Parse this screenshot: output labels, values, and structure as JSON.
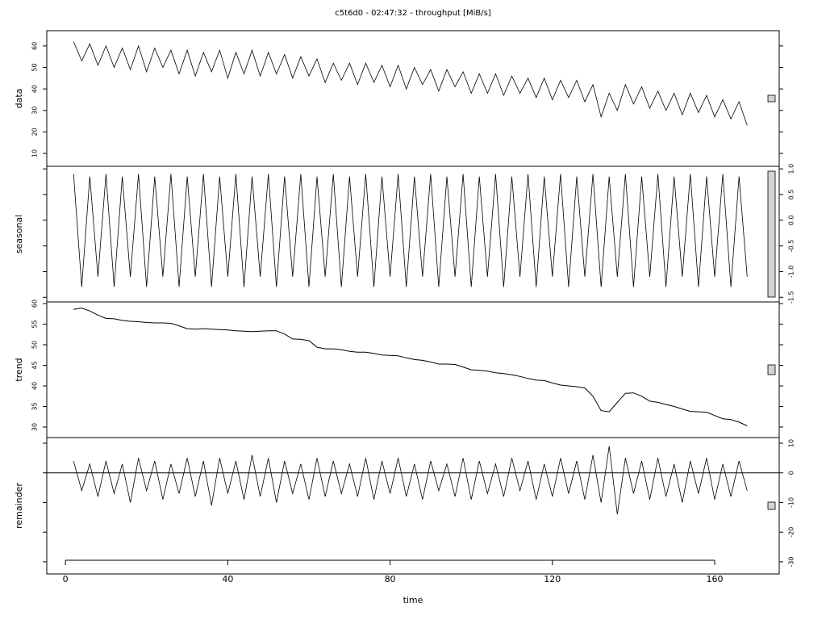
{
  "chart_data": [
    {
      "type": "line",
      "title": "c5t6d0 - 02:47:32 - throughput [MiB/s]",
      "ylabel": "data",
      "axis_side": "left",
      "color": "#000000",
      "xlim": [
        -4.6,
        175.9
      ],
      "ylim": [
        4.0,
        67.1
      ],
      "yticks": [
        10,
        20,
        30,
        40,
        50,
        60
      ],
      "x": [
        2,
        4,
        6,
        8,
        10,
        12,
        14,
        16,
        18,
        20,
        22,
        24,
        26,
        28,
        30,
        32,
        34,
        36,
        38,
        40,
        42,
        44,
        46,
        48,
        50,
        52,
        54,
        56,
        58,
        60,
        62,
        64,
        66,
        68,
        70,
        72,
        74,
        76,
        78,
        80,
        82,
        84,
        86,
        88,
        90,
        92,
        94,
        96,
        98,
        100,
        102,
        104,
        106,
        108,
        110,
        112,
        114,
        116,
        118,
        120,
        122,
        124,
        126,
        128,
        130,
        132,
        134,
        136,
        138,
        140,
        142,
        144,
        146,
        148,
        150,
        152,
        154,
        156,
        158,
        160,
        162,
        164,
        166,
        168
      ],
      "values": [
        62,
        53,
        61,
        51,
        60,
        50,
        59,
        49,
        60,
        48,
        59,
        50,
        58,
        47,
        58,
        46,
        57,
        48,
        58,
        45,
        57,
        47,
        58,
        46,
        57,
        47,
        56,
        45,
        55,
        46,
        54,
        43,
        52,
        44,
        52,
        42,
        52,
        43,
        51,
        41,
        51,
        40,
        50,
        42,
        49,
        39,
        49,
        41,
        48,
        38,
        47,
        38,
        47,
        37,
        46,
        38,
        45,
        36,
        45,
        35,
        44,
        36,
        44,
        34,
        42,
        27,
        38,
        30,
        42,
        33,
        41,
        31,
        39,
        30,
        38,
        28,
        38,
        29,
        37,
        27,
        35,
        26,
        34,
        23
      ]
    },
    {
      "type": "line",
      "ylabel": "seasonal",
      "axis_side": "right",
      "color": "#000000",
      "xlim": [
        -4.6,
        175.9
      ],
      "ylim": [
        -1.59,
        1.05
      ],
      "yticks": [
        {
          "value": 1,
          "label": "1.0"
        },
        0.5,
        {
          "value": 0,
          "label": "0.0"
        },
        -0.5,
        {
          "value": -1,
          "label": "-1.0"
        },
        -1.5
      ],
      "x": [
        2,
        4,
        6,
        8,
        10,
        12,
        14,
        16,
        18,
        20,
        22,
        24,
        26,
        28,
        30,
        32,
        34,
        36,
        38,
        40,
        42,
        44,
        46,
        48,
        50,
        52,
        54,
        56,
        58,
        60,
        62,
        64,
        66,
        68,
        70,
        72,
        74,
        76,
        78,
        80,
        82,
        84,
        86,
        88,
        90,
        92,
        94,
        96,
        98,
        100,
        102,
        104,
        106,
        108,
        110,
        112,
        114,
        116,
        118,
        120,
        122,
        124,
        126,
        128,
        130,
        132,
        134,
        136,
        138,
        140,
        142,
        144,
        146,
        148,
        150,
        152,
        154,
        156,
        158,
        160,
        162,
        164,
        166,
        168
      ],
      "values": [
        0.9,
        -1.3,
        0.85,
        -1.1,
        0.9,
        -1.3,
        0.85,
        -1.1,
        0.9,
        -1.3,
        0.85,
        -1.1,
        0.9,
        -1.3,
        0.85,
        -1.1,
        0.9,
        -1.3,
        0.85,
        -1.1,
        0.9,
        -1.3,
        0.85,
        -1.1,
        0.9,
        -1.3,
        0.85,
        -1.1,
        0.9,
        -1.3,
        0.85,
        -1.1,
        0.9,
        -1.3,
        0.85,
        -1.1,
        0.9,
        -1.3,
        0.85,
        -1.1,
        0.9,
        -1.3,
        0.85,
        -1.1,
        0.9,
        -1.3,
        0.85,
        -1.1,
        0.9,
        -1.3,
        0.85,
        -1.1,
        0.9,
        -1.3,
        0.85,
        -1.1,
        0.9,
        -1.3,
        0.85,
        -1.1,
        0.9,
        -1.3,
        0.85,
        -1.1,
        0.9,
        -1.3,
        0.85,
        -1.1,
        0.9,
        -1.3,
        0.85,
        -1.1,
        0.9,
        -1.3,
        0.85,
        -1.1,
        0.9,
        -1.3,
        0.85,
        -1.1,
        0.9,
        -1.3,
        0.85,
        -1.1
      ]
    },
    {
      "type": "line",
      "ylabel": "trend",
      "axis_side": "left",
      "color": "#000000",
      "xlim": [
        -4.6,
        175.9
      ],
      "ylim": [
        27.45,
        60.4
      ],
      "yticks": [
        30,
        35,
        40,
        45,
        50,
        55,
        60
      ],
      "x": [
        2,
        4,
        6,
        8,
        10,
        12,
        14,
        16,
        18,
        20,
        22,
        24,
        26,
        28,
        30,
        32,
        34,
        36,
        38,
        40,
        42,
        44,
        46,
        48,
        50,
        52,
        54,
        56,
        58,
        60,
        62,
        64,
        66,
        68,
        70,
        72,
        74,
        76,
        78,
        80,
        82,
        84,
        86,
        88,
        90,
        92,
        94,
        96,
        98,
        100,
        102,
        104,
        106,
        108,
        110,
        112,
        114,
        116,
        118,
        120,
        122,
        124,
        126,
        128,
        130,
        132,
        134,
        136,
        138,
        140,
        142,
        144,
        146,
        148,
        150,
        152,
        154,
        156,
        158,
        160,
        162,
        164,
        166,
        168
      ],
      "values": [
        58.6,
        58.9,
        58.2,
        57.2,
        56.4,
        56.3,
        55.9,
        55.7,
        55.6,
        55.4,
        55.3,
        55.3,
        55.2,
        54.6,
        53.9,
        53.8,
        53.9,
        53.8,
        53.7,
        53.6,
        53.4,
        53.3,
        53.2,
        53.3,
        53.4,
        53.4,
        52.6,
        51.4,
        51.3,
        51.0,
        49.4,
        49.0,
        49.0,
        48.8,
        48.4,
        48.2,
        48.2,
        47.9,
        47.5,
        47.4,
        47.3,
        46.8,
        46.4,
        46.2,
        45.8,
        45.3,
        45.3,
        45.2,
        44.6,
        43.9,
        43.8,
        43.6,
        43.2,
        43.0,
        42.7,
        42.3,
        41.8,
        41.4,
        41.3,
        40.7,
        40.2,
        40.0,
        39.8,
        39.5,
        37.5,
        34.0,
        33.7,
        36.0,
        38.2,
        38.3,
        37.5,
        36.3,
        36.0,
        35.5,
        35.0,
        34.4,
        33.8,
        33.7,
        33.6,
        32.8,
        32.0,
        31.8,
        31.2,
        30.3
      ]
    },
    {
      "type": "line",
      "ylabel": "remainder",
      "xlabel": "time",
      "axis_side": "right",
      "color": "#000000",
      "reference_line": 0,
      "xlim": [
        -4.6,
        175.9
      ],
      "xticks": [
        0,
        40,
        80,
        120,
        160
      ],
      "ylim": [
        -34.1,
        11.9
      ],
      "yticks": [
        10,
        0,
        -10,
        -20,
        -30
      ],
      "x": [
        2,
        4,
        6,
        8,
        10,
        12,
        14,
        16,
        18,
        20,
        22,
        24,
        26,
        28,
        30,
        32,
        34,
        36,
        38,
        40,
        42,
        44,
        46,
        48,
        50,
        52,
        54,
        56,
        58,
        60,
        62,
        64,
        66,
        68,
        70,
        72,
        74,
        76,
        78,
        80,
        82,
        84,
        86,
        88,
        90,
        92,
        94,
        96,
        98,
        100,
        102,
        104,
        106,
        108,
        110,
        112,
        114,
        116,
        118,
        120,
        122,
        124,
        126,
        128,
        130,
        132,
        134,
        136,
        138,
        140,
        142,
        144,
        146,
        148,
        150,
        152,
        154,
        156,
        158,
        160,
        162,
        164,
        166,
        168
      ],
      "values": [
        4,
        -6,
        3,
        -8,
        4,
        -7,
        3,
        -10,
        5,
        -6,
        4,
        -9,
        3,
        -7,
        5,
        -8,
        4,
        -11,
        5,
        -7,
        4,
        -9,
        6,
        -8,
        5,
        -10,
        4,
        -7,
        3,
        -9,
        5,
        -8,
        4,
        -7,
        3,
        -8,
        5,
        -9,
        4,
        -7,
        5,
        -8,
        3,
        -9,
        4,
        -6,
        3,
        -8,
        5,
        -9,
        4,
        -7,
        3,
        -8,
        5,
        -6,
        4,
        -9,
        3,
        -8,
        5,
        -7,
        4,
        -9,
        6,
        -10,
        9,
        -14,
        5,
        -7,
        4,
        -9,
        5,
        -8,
        3,
        -10,
        4,
        -7,
        5,
        -9,
        3,
        -8,
        4,
        -6
      ]
    }
  ]
}
